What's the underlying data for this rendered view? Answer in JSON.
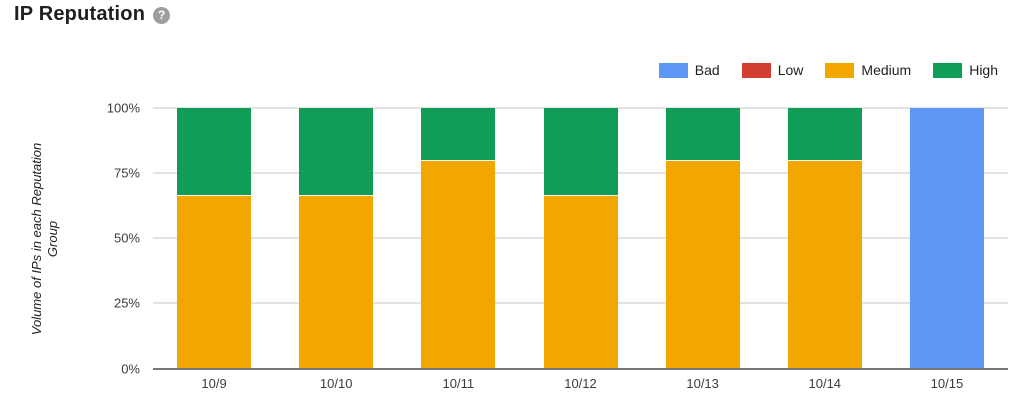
{
  "header": {
    "title": "IP Reputation",
    "help_glyph": "?"
  },
  "legend": {
    "items": [
      {
        "label": "Bad",
        "color": "#5E97F6"
      },
      {
        "label": "Low",
        "color": "#D23F31"
      },
      {
        "label": "Medium",
        "color": "#F2A600"
      },
      {
        "label": "High",
        "color": "#0F9D58"
      }
    ]
  },
  "axes": {
    "y_title_line1": "Volume of IPs in each Reputation",
    "y_title_line2": "Group",
    "y_ticks": [
      "0%",
      "25%",
      "50%",
      "75%",
      "100%"
    ]
  },
  "colors": {
    "gridline": "#E3E3E3",
    "baseline": "#777777",
    "help_icon_bg": "#9E9E9E"
  },
  "chart_data": {
    "type": "bar",
    "subtype": "stacked-percent-column",
    "title": "IP Reputation",
    "categories": [
      "10/9",
      "10/10",
      "10/11",
      "10/12",
      "10/13",
      "10/14",
      "10/15"
    ],
    "series": [
      {
        "name": "Bad",
        "color": "#5E97F6",
        "values": [
          0,
          0,
          0,
          0,
          0,
          0,
          100
        ]
      },
      {
        "name": "Low",
        "color": "#D23F31",
        "values": [
          0,
          0,
          0,
          0,
          0,
          0,
          0
        ]
      },
      {
        "name": "Medium",
        "color": "#F2A600",
        "values": [
          66.7,
          66.7,
          80,
          66.7,
          80,
          80,
          0
        ]
      },
      {
        "name": "High",
        "color": "#0F9D58",
        "values": [
          33.3,
          33.3,
          20,
          33.3,
          20,
          20,
          0
        ]
      }
    ],
    "xlabel": "",
    "ylabel": "Volume of IPs in each Reputation Group",
    "ylim": [
      0,
      100
    ],
    "ytick_values": [
      0,
      25,
      50,
      75,
      100
    ],
    "grid": true,
    "legend_position": "top-right"
  }
}
